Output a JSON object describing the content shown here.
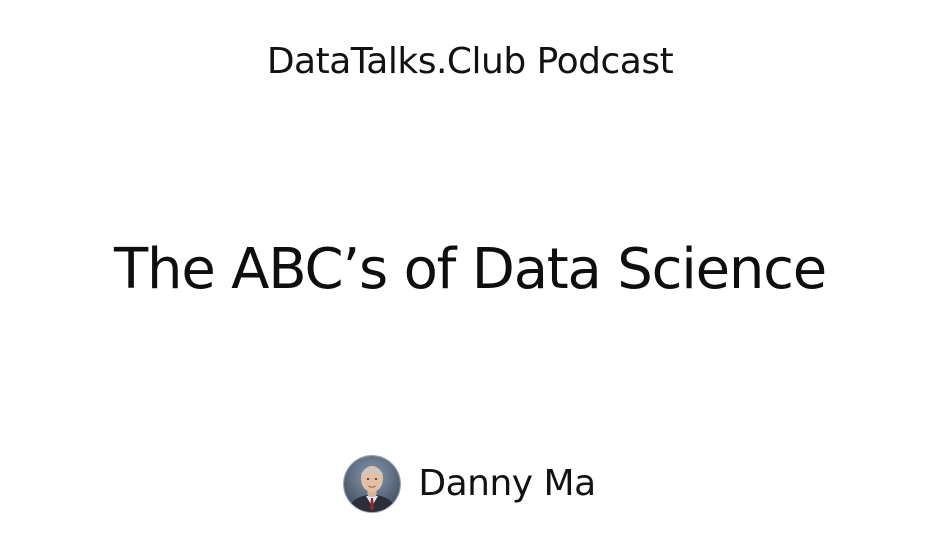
{
  "header": {
    "podcast_name": "DataTalks.Club Podcast"
  },
  "episode": {
    "title": "The ABC’s of Data Science"
  },
  "guest": {
    "name": "Danny Ma",
    "avatar_icon": "person-photo"
  }
}
